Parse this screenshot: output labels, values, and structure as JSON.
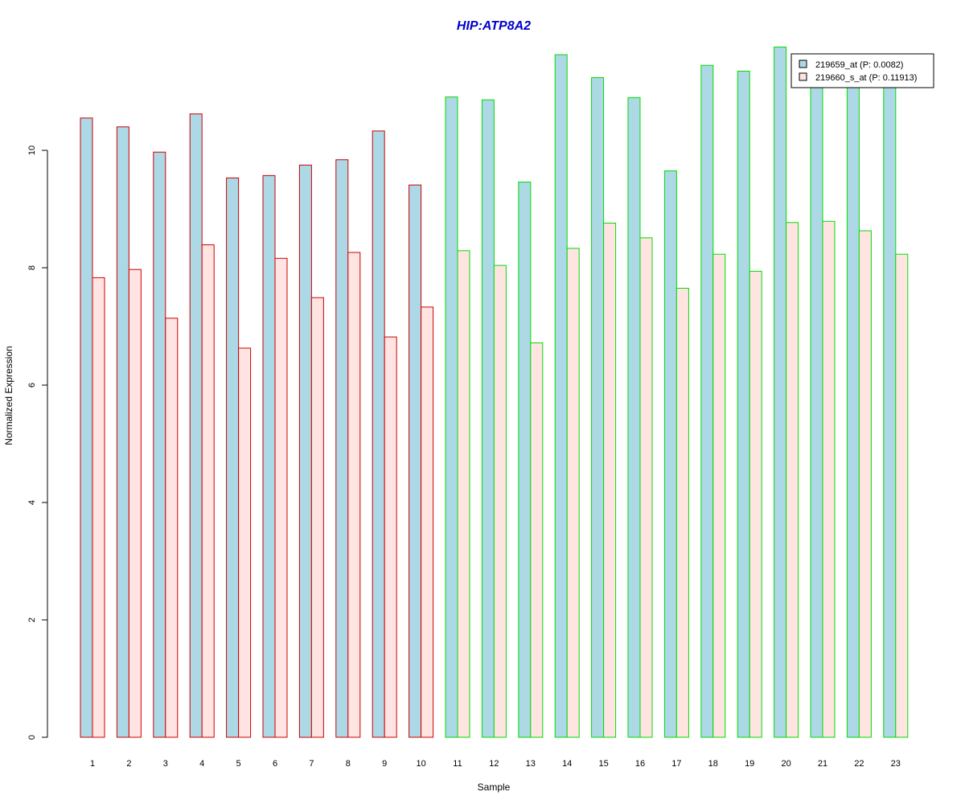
{
  "chart_data": {
    "type": "bar",
    "title": "HIP:ATP8A2",
    "title_color": "#0000CC",
    "xlabel": "Sample",
    "ylabel": "Normalized Expression",
    "ylim": [
      0,
      11.7
    ],
    "yticks": [
      0,
      2,
      4,
      6,
      8,
      10
    ],
    "grid": false,
    "legend_position": "top-right",
    "categories": [
      "1",
      "2",
      "3",
      "4",
      "5",
      "6",
      "7",
      "8",
      "9",
      "10",
      "11",
      "12",
      "13",
      "14",
      "15",
      "16",
      "17",
      "18",
      "19",
      "20",
      "21",
      "22",
      "23"
    ],
    "group_border_colors": [
      "#CC0000",
      "#CC0000",
      "#CC0000",
      "#CC0000",
      "#CC0000",
      "#CC0000",
      "#CC0000",
      "#CC0000",
      "#CC0000",
      "#CC0000",
      "#00DD00",
      "#00DD00",
      "#00DD00",
      "#00DD00",
      "#00DD00",
      "#00DD00",
      "#00DD00",
      "#00DD00",
      "#00DD00",
      "#00DD00",
      "#00DD00",
      "#00DD00",
      "#00DD00"
    ],
    "series": [
      {
        "name": "219659_at (P: 0.0082)",
        "fill": "#ADD8E6",
        "values": [
          10.55,
          10.4,
          9.97,
          10.62,
          9.53,
          9.57,
          9.75,
          9.84,
          10.33,
          9.41,
          10.91,
          10.86,
          9.46,
          11.63,
          11.24,
          10.9,
          9.65,
          11.45,
          11.35,
          11.76,
          11.1,
          11.1,
          11.1
        ]
      },
      {
        "name": "219660_s_at (P: 0.11913)",
        "fill": "#FFE4E1",
        "values": [
          7.83,
          7.97,
          7.14,
          8.39,
          6.63,
          8.16,
          7.49,
          8.26,
          6.82,
          7.33,
          8.29,
          8.04,
          6.72,
          8.33,
          8.76,
          8.51,
          7.65,
          8.23,
          7.94,
          8.77,
          8.79,
          8.63,
          8.23
        ]
      }
    ]
  }
}
